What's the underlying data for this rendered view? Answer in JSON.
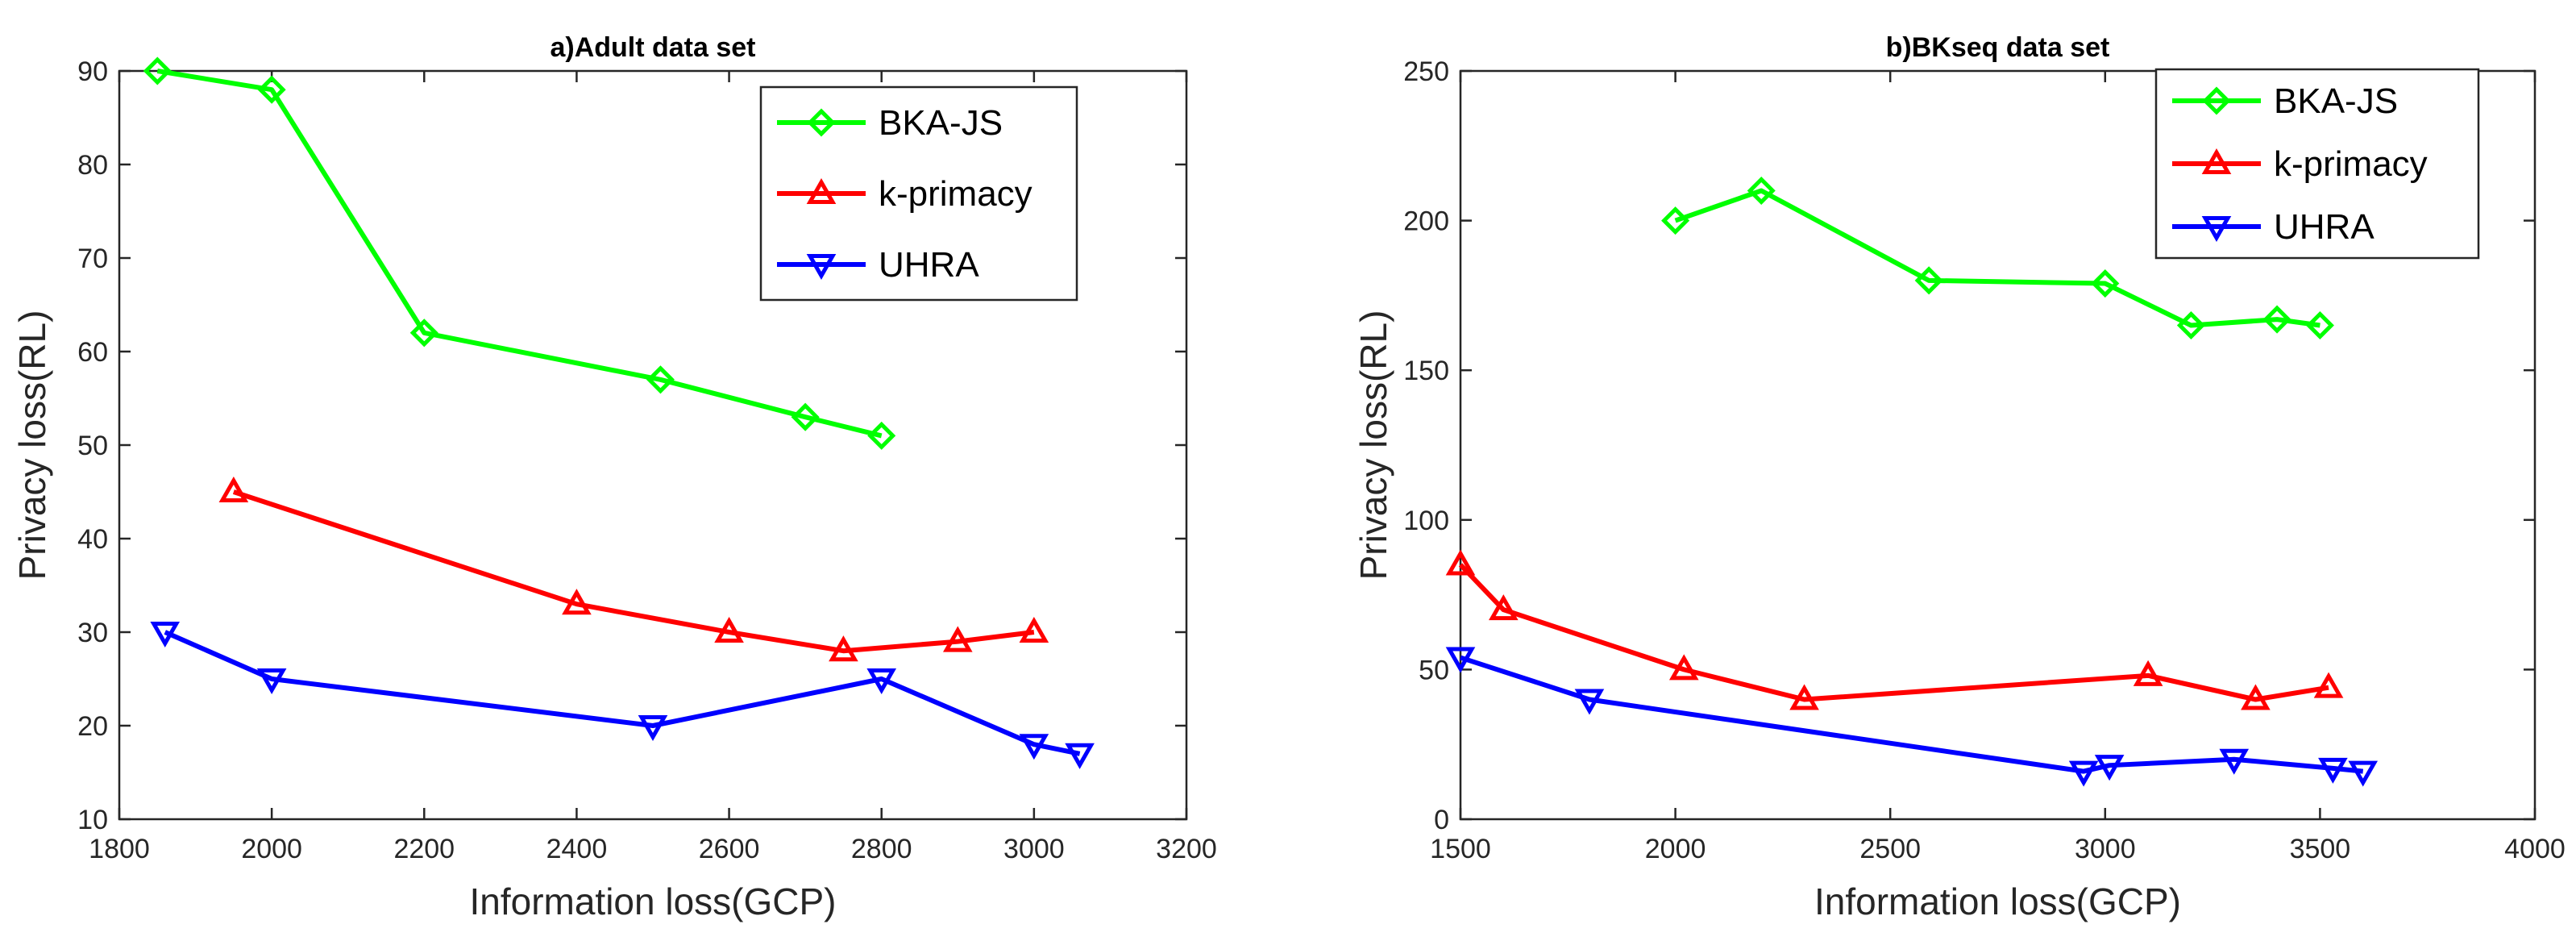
{
  "chart_data": [
    {
      "type": "line",
      "title": "a)Adult data set",
      "xlabel": "Information loss(GCP)",
      "ylabel": "Privacy loss(RL)",
      "xlim": [
        1800,
        3200
      ],
      "ylim": [
        10,
        90
      ],
      "xticks": [
        1800,
        2000,
        2200,
        2400,
        2600,
        2800,
        3000,
        3200
      ],
      "yticks": [
        10,
        20,
        30,
        40,
        50,
        60,
        70,
        80,
        90
      ],
      "legend_position": "top-right",
      "series": [
        {
          "name": "BKA-JS",
          "color": "#00ff00",
          "marker": "diamond",
          "x": [
            1850,
            2000,
            2200,
            2510,
            2700,
            2800
          ],
          "y": [
            90,
            88,
            62,
            57,
            53,
            51
          ]
        },
        {
          "name": "k-primacy",
          "color": "#ff0000",
          "marker": "triangle-up",
          "x": [
            1950,
            2400,
            2600,
            2750,
            2900,
            3000
          ],
          "y": [
            45,
            33,
            30,
            28,
            29,
            30
          ]
        },
        {
          "name": "UHRA",
          "color": "#0000ff",
          "marker": "triangle-down",
          "x": [
            1860,
            2000,
            2500,
            2800,
            3000,
            3060
          ],
          "y": [
            30,
            25,
            20,
            25,
            18,
            17
          ]
        }
      ]
    },
    {
      "type": "line",
      "title": "b)BKseq data set",
      "xlabel": "Information loss(GCP)",
      "ylabel": "Privacy loss(RL)",
      "xlim": [
        1500,
        4000
      ],
      "ylim": [
        0,
        250
      ],
      "xticks": [
        1500,
        2000,
        2500,
        3000,
        3500,
        4000
      ],
      "yticks": [
        0,
        50,
        100,
        150,
        200,
        250
      ],
      "legend_position": "top-right",
      "series": [
        {
          "name": "BKA-JS",
          "color": "#00ff00",
          "marker": "diamond",
          "x": [
            2000,
            2200,
            2590,
            3000,
            3200,
            3400,
            3500
          ],
          "y": [
            200,
            210,
            180,
            179,
            165,
            167,
            165
          ]
        },
        {
          "name": "k-primacy",
          "color": "#ff0000",
          "marker": "triangle-up",
          "x": [
            1500,
            1600,
            2020,
            2300,
            3100,
            3350,
            3520
          ],
          "y": [
            85,
            70,
            50,
            40,
            48,
            40,
            44
          ]
        },
        {
          "name": "UHRA",
          "color": "#0000ff",
          "marker": "triangle-down",
          "x": [
            1500,
            1800,
            2950,
            3010,
            3300,
            3530,
            3600
          ],
          "y": [
            54,
            40,
            16,
            18,
            20,
            17,
            16
          ]
        }
      ]
    }
  ]
}
